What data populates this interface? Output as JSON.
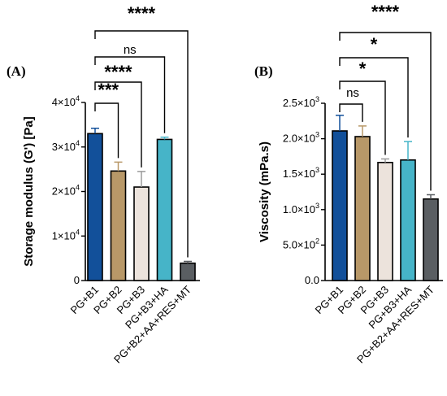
{
  "chart_data": [
    {
      "type": "bar",
      "panel_label": "(A)",
      "title": "",
      "xlabel": "",
      "ylabel": "Storage modulus (G') [Pa]",
      "ylim": [
        0,
        40000
      ],
      "yticks": [
        {
          "value": 0,
          "label": "0",
          "exp": ""
        },
        {
          "value": 10000,
          "label": "1×10",
          "exp": "4"
        },
        {
          "value": 20000,
          "label": "2×10",
          "exp": "4"
        },
        {
          "value": 30000,
          "label": "3×10",
          "exp": "4"
        },
        {
          "value": 40000,
          "label": "4×10",
          "exp": "4"
        }
      ],
      "categories": [
        "PG+B1",
        "PG+B2",
        "PG+B3",
        "PG+B3+HA",
        "PG+B2+AA+RES+MT"
      ],
      "values": [
        33000,
        24600,
        21000,
        31700,
        3900
      ],
      "errors": [
        1200,
        2000,
        3500,
        500,
        400
      ],
      "colors": [
        "#12509a",
        "#b89868",
        "#ece3dc",
        "#46b4c8",
        "#5a5e62"
      ],
      "comparisons": [
        {
          "from": 0,
          "to": 1,
          "label": "***"
        },
        {
          "from": 0,
          "to": 2,
          "label": "****"
        },
        {
          "from": 0,
          "to": 3,
          "label": "ns"
        },
        {
          "from": 0,
          "to": 4,
          "label": "****"
        }
      ]
    },
    {
      "type": "bar",
      "panel_label": "(B)",
      "title": "",
      "xlabel": "",
      "ylabel": "Viscosity (mPa.s)",
      "ylim": [
        0,
        2500
      ],
      "yticks": [
        {
          "value": 0,
          "label": "0.0",
          "exp": ""
        },
        {
          "value": 500,
          "label": "5.0×10",
          "exp": "2"
        },
        {
          "value": 1000,
          "label": "1.0×10",
          "exp": "3"
        },
        {
          "value": 1500,
          "label": "1.5×10",
          "exp": "3"
        },
        {
          "value": 2000,
          "label": "2.0×10",
          "exp": "3"
        },
        {
          "value": 2500,
          "label": "2.5×10",
          "exp": "3"
        }
      ],
      "categories": [
        "PG+B1",
        "PG+B2",
        "PG+B3",
        "PG+B3+HA",
        "PG+B2+AA+RES+MT"
      ],
      "values": [
        2110,
        2030,
        1665,
        1700,
        1150
      ],
      "errors": [
        220,
        150,
        50,
        260,
        60
      ],
      "colors": [
        "#12509a",
        "#b89868",
        "#ece3dc",
        "#46b4c8",
        "#5a5e62"
      ],
      "comparisons": [
        {
          "from": 0,
          "to": 1,
          "label": "ns"
        },
        {
          "from": 0,
          "to": 2,
          "label": "*"
        },
        {
          "from": 0,
          "to": 3,
          "label": "*"
        },
        {
          "from": 0,
          "to": 4,
          "label": "****"
        }
      ]
    }
  ]
}
